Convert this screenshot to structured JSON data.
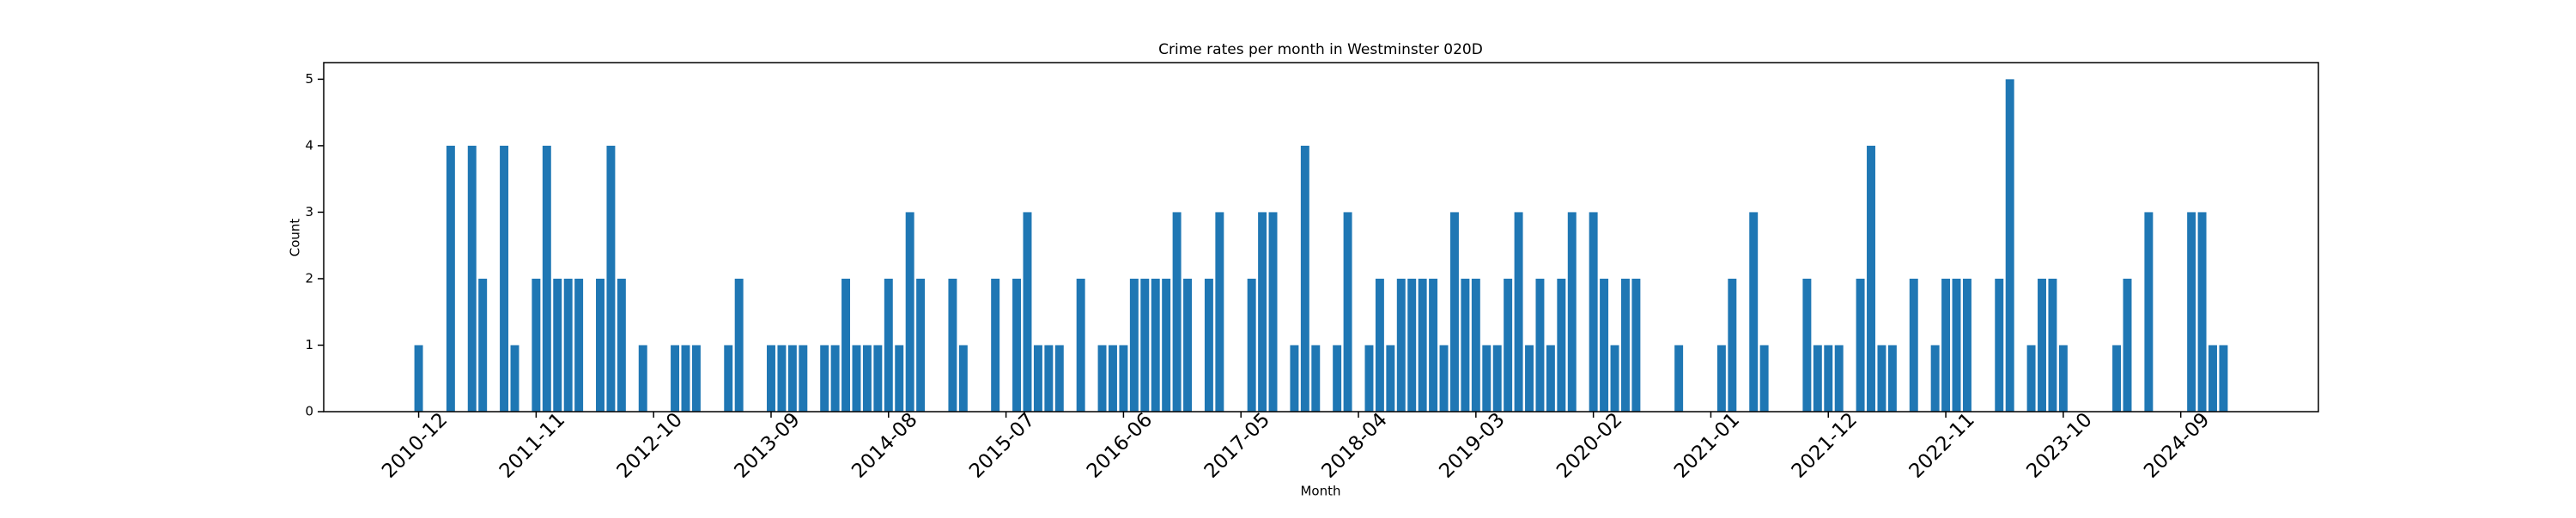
{
  "chart_data": {
    "type": "bar",
    "title": "Crime rates per month in Westminster 020D",
    "x_label": "Month",
    "y_label": "Count",
    "color": "#1f77b4",
    "categories": [
      "2010-12",
      null,
      null,
      null,
      null,
      null,
      null,
      null,
      null,
      null,
      null,
      "2011-11",
      null,
      null,
      null,
      null,
      null,
      null,
      null,
      null,
      null,
      null,
      "2012-10",
      null,
      null,
      null,
      null,
      null,
      null,
      null,
      null,
      null,
      null,
      "2013-09",
      null,
      null,
      null,
      null,
      null,
      null,
      null,
      null,
      null,
      null,
      "2014-08",
      null,
      null,
      null,
      null,
      null,
      null,
      null,
      null,
      null,
      null,
      "2015-07",
      null,
      null,
      null,
      null,
      null,
      null,
      null,
      null,
      null,
      null,
      "2016-06",
      null,
      null,
      null,
      null,
      null,
      null,
      null,
      null,
      null,
      null,
      "2017-05",
      null,
      null,
      null,
      null,
      null,
      null,
      null,
      null,
      null,
      null,
      "2018-04",
      null,
      null,
      null,
      null,
      null,
      null,
      null,
      null,
      null,
      null,
      "2019-03",
      null,
      null,
      null,
      null,
      null,
      null,
      null,
      null,
      null,
      null,
      "2020-02",
      null,
      null,
      null,
      null,
      null,
      null,
      null,
      null,
      null,
      null,
      "2021-01",
      null,
      null,
      null,
      null,
      null,
      null,
      null,
      null,
      null,
      null,
      "2021-12",
      null,
      null,
      null,
      null,
      null,
      null,
      null,
      null,
      null,
      null,
      "2022-11",
      null,
      null,
      null,
      null,
      null,
      null,
      null,
      null,
      null,
      null,
      "2023-10",
      null,
      null,
      null,
      null,
      null,
      null,
      null,
      null,
      null,
      null,
      "2024-09",
      null,
      null,
      null,
      null
    ],
    "values": [
      1,
      0,
      0,
      4,
      0,
      4,
      2,
      0,
      4,
      1,
      0,
      2,
      4,
      2,
      2,
      2,
      0,
      2,
      4,
      2,
      0,
      1,
      0,
      0,
      1,
      1,
      1,
      0,
      0,
      1,
      2,
      0,
      0,
      1,
      1,
      1,
      1,
      0,
      1,
      1,
      2,
      1,
      1,
      1,
      2,
      1,
      3,
      2,
      0,
      0,
      2,
      1,
      0,
      0,
      2,
      0,
      2,
      3,
      1,
      1,
      1,
      0,
      2,
      0,
      1,
      1,
      1,
      2,
      2,
      2,
      2,
      3,
      2,
      0,
      2,
      3,
      0,
      0,
      2,
      3,
      3,
      0,
      1,
      4,
      1,
      0,
      1,
      3,
      0,
      1,
      2,
      1,
      2,
      2,
      2,
      2,
      1,
      3,
      2,
      2,
      1,
      1,
      2,
      3,
      1,
      2,
      1,
      2,
      3,
      0,
      3,
      2,
      1,
      2,
      2,
      0,
      0,
      0,
      1,
      0,
      0,
      0,
      1,
      2,
      0,
      3,
      1,
      0,
      0,
      0,
      2,
      1,
      1,
      1,
      0,
      2,
      4,
      1,
      1,
      0,
      2,
      0,
      1,
      2,
      2,
      2,
      0,
      0,
      2,
      5,
      0,
      1,
      2,
      2,
      1,
      0,
      0,
      0,
      0,
      1,
      2,
      0,
      3,
      0,
      0,
      0,
      3,
      3,
      1,
      1
    ],
    "ylim": [
      0,
      5.25
    ],
    "yticks": [
      0,
      1,
      2,
      3,
      4,
      5
    ]
  }
}
